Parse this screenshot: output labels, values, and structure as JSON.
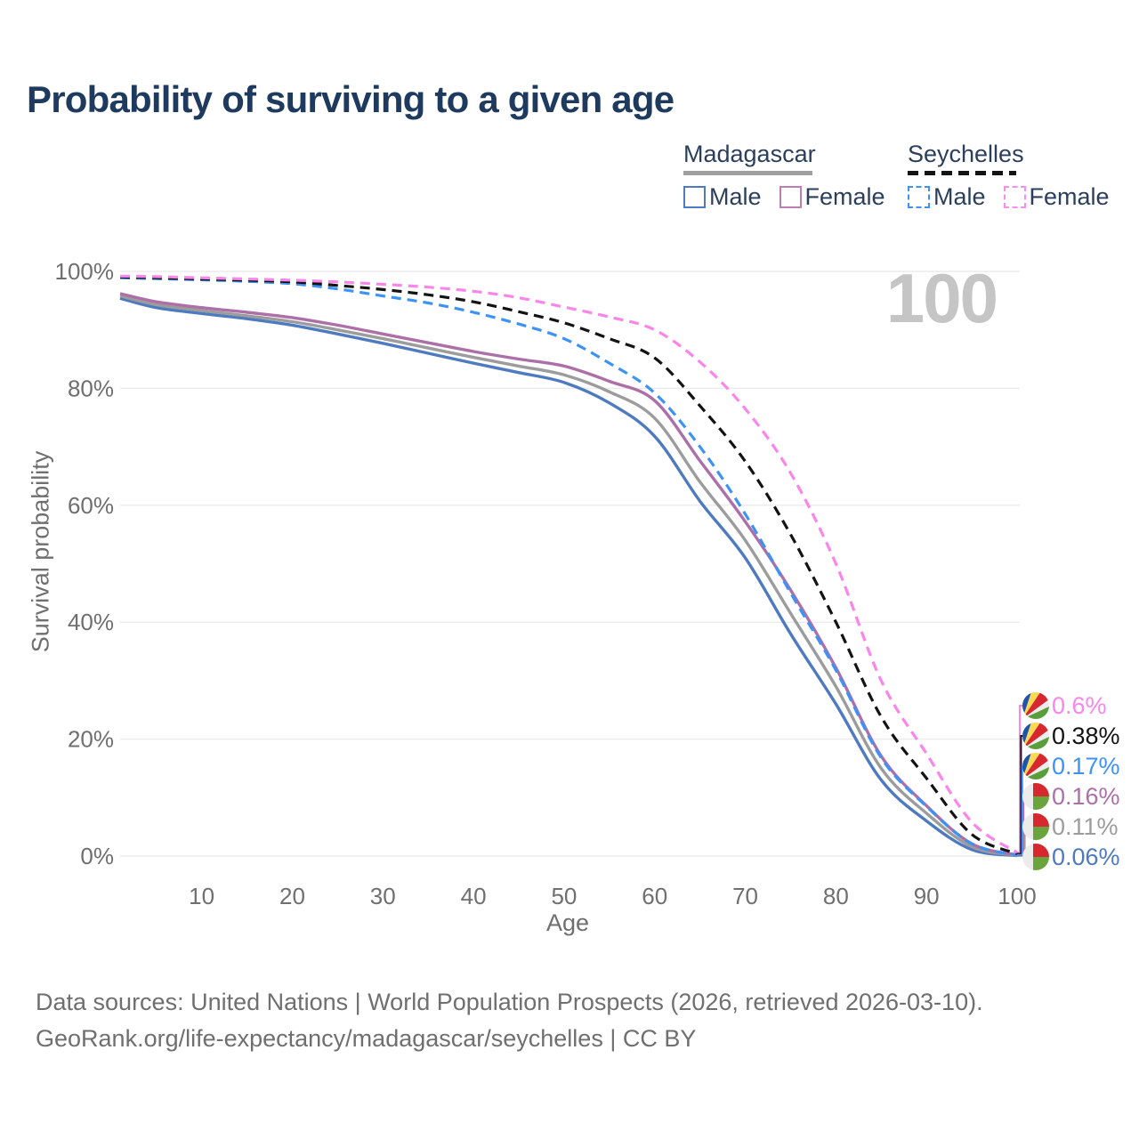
{
  "title": "Probability of surviving to a given age",
  "watermark": "100",
  "legend": {
    "groups": [
      {
        "name": "Madagascar",
        "line_style": "solid",
        "underline_color": "#a0a0a0",
        "items": [
          {
            "label": "Male",
            "color": "#4e7ac0",
            "box_style": "solid"
          },
          {
            "label": "Female",
            "color": "#bd7eb3",
            "box_style": "solid"
          }
        ]
      },
      {
        "name": "Seychelles",
        "line_style": "dashed",
        "underline_color": "#131313",
        "items": [
          {
            "label": "Male",
            "color": "#3d93f5",
            "box_style": "dashed"
          },
          {
            "label": "Female",
            "color": "#fb8cf0",
            "box_style": "dashed"
          }
        ]
      }
    ]
  },
  "axes": {
    "y_title": "Survival probability",
    "x_title": "Age"
  },
  "source": {
    "line1": "Data sources: United Nations | World Population Prospects (2026, retrieved 2026-03-10).",
    "line2": "GeoRank.org/life-expectancy/madagascar/seychelles | CC BY"
  },
  "chart_data": {
    "type": "line",
    "title": "Probability of surviving to a given age",
    "xlabel": "Age",
    "ylabel": "Survival probability",
    "x_range": [
      1,
      100
    ],
    "y_range_percent": [
      0,
      100
    ],
    "grid": "horizontal",
    "legend_position": "top-right",
    "x_ticks": [
      10,
      20,
      30,
      40,
      50,
      60,
      70,
      80,
      90,
      100
    ],
    "y_ticks": [
      {
        "label": "100%",
        "value": 100
      },
      {
        "label": "80%",
        "value": 80
      },
      {
        "label": "60%",
        "value": 60
      },
      {
        "label": "40%",
        "value": 40
      },
      {
        "label": "20%",
        "value": 20
      },
      {
        "label": "0%",
        "value": 0
      }
    ],
    "ages": [
      1,
      5,
      10,
      15,
      20,
      25,
      30,
      35,
      40,
      45,
      50,
      55,
      60,
      65,
      70,
      75,
      80,
      85,
      90,
      95,
      100
    ],
    "series": [
      {
        "name": "Seychelles Female",
        "country": "Seychelles",
        "sex": "Female",
        "flag": "seychelles",
        "color": "#fb85ea",
        "dash": true,
        "end_label": "0.6%",
        "values": [
          99.2,
          99.1,
          98.9,
          98.7,
          98.5,
          98.2,
          97.8,
          97.3,
          96.6,
          95.5,
          93.9,
          92.2,
          90.0,
          84.5,
          76.5,
          65.5,
          50.0,
          30.0,
          17.5,
          5.8,
          0.6
        ]
      },
      {
        "name": "Seychelles All",
        "country": "Seychelles",
        "sex": "All",
        "flag": "seychelles",
        "color": "#131313",
        "dash": true,
        "end_label": "0.38%",
        "values": [
          99.05,
          98.9,
          98.7,
          98.5,
          98.2,
          97.6,
          96.9,
          96.0,
          94.8,
          93.1,
          91.2,
          88.5,
          85.2,
          77.0,
          67.5,
          55.0,
          40.0,
          23.8,
          13.3,
          3.7,
          0.38
        ]
      },
      {
        "name": "Seychelles Male",
        "country": "Seychelles",
        "sex": "Male",
        "flag": "seychelles",
        "color": "#3d93f5",
        "dash": true,
        "end_label": "0.17%",
        "values": [
          98.9,
          98.75,
          98.55,
          98.3,
          97.9,
          97.0,
          95.8,
          94.6,
          93.0,
          91.0,
          88.5,
          84.3,
          79.2,
          70.0,
          58.5,
          45.0,
          31.8,
          16.8,
          8.5,
          2.1,
          0.17
        ]
      },
      {
        "name": "Madagascar Female",
        "country": "Madagascar",
        "sex": "Female",
        "flag": "madagascar",
        "color": "#ad6fa8",
        "dash": false,
        "end_label": "0.16%",
        "values": [
          96.2,
          94.8,
          93.8,
          93.0,
          92.1,
          90.8,
          89.3,
          87.8,
          86.3,
          85.0,
          83.8,
          81.2,
          77.9,
          67.6,
          57.2,
          45.5,
          32.2,
          17.1,
          8.6,
          2.1,
          0.16
        ]
      },
      {
        "name": "Madagascar All",
        "country": "Madagascar",
        "sex": "All",
        "flag": "madagascar",
        "color": "#9c9c9c",
        "dash": false,
        "end_label": "0.11%",
        "values": [
          95.8,
          94.3,
          93.3,
          92.4,
          91.4,
          90.0,
          88.5,
          86.9,
          85.3,
          83.8,
          82.3,
          79.4,
          74.9,
          64.0,
          54.0,
          41.5,
          29.0,
          15.0,
          7.3,
          1.6,
          0.11
        ]
      },
      {
        "name": "Madagascar Male",
        "country": "Madagascar",
        "sex": "Male",
        "flag": "madagascar",
        "color": "#4e7ac0",
        "dash": false,
        "end_label": "0.06%",
        "values": [
          95.4,
          93.8,
          92.8,
          91.9,
          90.8,
          89.3,
          87.7,
          86.0,
          84.3,
          82.7,
          81.0,
          77.5,
          71.8,
          60.7,
          51.0,
          38.0,
          26.0,
          13.0,
          6.0,
          1.1,
          0.06
        ]
      }
    ],
    "flag_colors": {
      "seychelles": {
        "blue": "#1f55a8",
        "yellow": "#fcd955",
        "red": "#d7282f",
        "white": "#ececec",
        "green": "#5a9e3c"
      },
      "madagascar": {
        "white": "#ececec",
        "red": "#d7282f",
        "green": "#6aa43c"
      }
    }
  }
}
